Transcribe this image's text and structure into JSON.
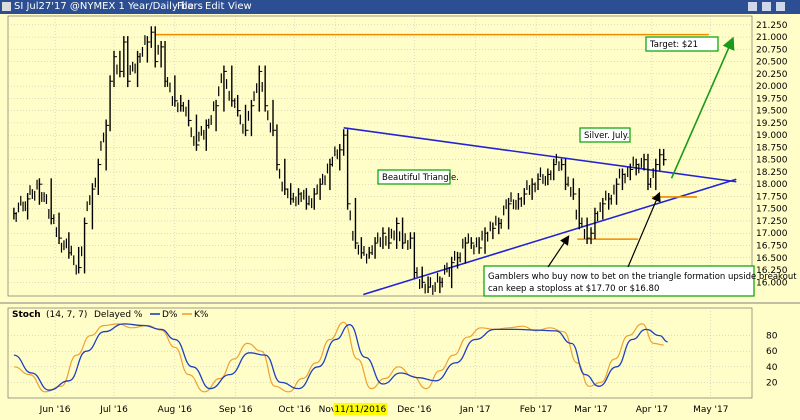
{
  "toolbar": {
    "title": "SI Jul27'17 @NYMEX  1 Year/Daily bars",
    "menu": [
      "File",
      "Edit",
      "View"
    ]
  },
  "stoch_header": {
    "name": "Stoch",
    "params": "(14, 7, 7)",
    "legend_d": "Delayed %",
    "legend_d2": "D%",
    "legend_k": "K%"
  },
  "annotations": {
    "target": "Target: $21",
    "silver": "Silver. July.",
    "triangle": "Beautiful Triangle.",
    "gamblers_line1": "Gamblers who buy now to bet on the triangle formation upside breakout",
    "gamblers_line2": "can keep a stoploss at $17.70 or $16.80"
  },
  "highlight_date": "11/11/2016",
  "colors": {
    "background": "#fffec8",
    "toolbar": "#2b4f92",
    "bars": "#000000",
    "triangle_lines": "#2323d6",
    "orange_lines": "#f08a00",
    "green_arrow": "#1a9a1a",
    "label_border": "#00a000",
    "stoch_k": "#f0a030",
    "stoch_d": "#1f3fbf",
    "date_highlight": "#ffff00"
  },
  "chart_data": [
    {
      "type": "line",
      "title": "SI Jul27'17 @NYMEX  1 Year/Daily bars",
      "series": [
        {
          "values": [
            [
              "2016-05-25",
              17.4
            ],
            [
              "2016-06-01",
              17.7
            ],
            [
              "2016-06-07",
              18.0
            ],
            [
              "2016-06-13",
              17.3
            ],
            [
              "2016-06-17",
              16.9
            ],
            [
              "2016-06-22",
              16.6
            ],
            [
              "2016-06-27",
              16.3
            ],
            [
              "2016-06-30",
              17.2
            ],
            [
              "2016-07-04",
              17.9
            ],
            [
              "2016-07-07",
              18.4
            ],
            [
              "2016-07-11",
              19.2
            ],
            [
              "2016-07-13",
              20.1
            ],
            [
              "2016-07-15",
              20.6
            ],
            [
              "2016-07-18",
              20.3
            ],
            [
              "2016-07-20",
              20.9
            ],
            [
              "2016-07-22",
              20.1
            ],
            [
              "2016-07-27",
              20.6
            ],
            [
              "2016-08-01",
              20.9
            ],
            [
              "2016-08-03",
              21.1
            ],
            [
              "2016-08-05",
              20.5
            ],
            [
              "2016-08-08",
              20.8
            ],
            [
              "2016-08-10",
              20.1
            ],
            [
              "2016-08-15",
              19.7
            ],
            [
              "2016-08-18",
              19.6
            ],
            [
              "2016-08-22",
              19.3
            ],
            [
              "2016-08-26",
              18.8
            ],
            [
              "2016-08-31",
              19.2
            ],
            [
              "2016-09-05",
              19.6
            ],
            [
              "2016-09-09",
              20.3
            ],
            [
              "2016-09-13",
              19.7
            ],
            [
              "2016-09-16",
              19.5
            ],
            [
              "2016-09-20",
              19.1
            ],
            [
              "2016-09-23",
              19.6
            ],
            [
              "2016-09-27",
              20.3
            ],
            [
              "2016-09-30",
              19.6
            ],
            [
              "2016-10-04",
              19.1
            ],
            [
              "2016-10-06",
              18.4
            ],
            [
              "2016-10-10",
              17.9
            ],
            [
              "2016-10-13",
              17.7
            ],
            [
              "2016-10-17",
              17.8
            ],
            [
              "2016-10-21",
              17.6
            ],
            [
              "2016-10-25",
              17.8
            ],
            [
              "2016-10-28",
              18.0
            ],
            [
              "2016-11-02",
              18.4
            ],
            [
              "2016-11-07",
              18.7
            ],
            [
              "2016-11-09",
              19.0
            ],
            [
              "2016-11-11",
              17.6
            ],
            [
              "2016-11-15",
              16.8
            ],
            [
              "2016-11-18",
              16.6
            ],
            [
              "2016-11-22",
              16.6
            ],
            [
              "2016-11-25",
              16.8
            ],
            [
              "2016-11-29",
              17.0
            ],
            [
              "2016-12-02",
              16.8
            ],
            [
              "2016-12-06",
              17.2
            ],
            [
              "2016-12-09",
              16.8
            ],
            [
              "2016-12-13",
              16.9
            ],
            [
              "2016-12-15",
              16.2
            ],
            [
              "2016-12-19",
              16.0
            ],
            [
              "2016-12-22",
              15.9
            ],
            [
              "2016-12-28",
              16.0
            ],
            [
              "2017-01-03",
              16.4
            ],
            [
              "2017-01-06",
              16.5
            ],
            [
              "2017-01-10",
              16.8
            ],
            [
              "2017-01-13",
              16.8
            ],
            [
              "2017-01-17",
              16.7
            ],
            [
              "2017-01-20",
              17.0
            ],
            [
              "2017-01-24",
              17.1
            ],
            [
              "2017-01-27",
              17.2
            ],
            [
              "2017-02-01",
              17.6
            ],
            [
              "2017-02-06",
              17.7
            ],
            [
              "2017-02-09",
              17.8
            ],
            [
              "2017-02-13",
              18.0
            ],
            [
              "2017-02-16",
              18.1
            ],
            [
              "2017-02-21",
              18.2
            ],
            [
              "2017-02-24",
              18.4
            ],
            [
              "2017-02-28",
              18.4
            ],
            [
              "2017-03-02",
              18.0
            ],
            [
              "2017-03-06",
              17.8
            ],
            [
              "2017-03-09",
              17.2
            ],
            [
              "2017-03-13",
              16.9
            ],
            [
              "2017-03-15",
              17.0
            ],
            [
              "2017-03-17",
              17.4
            ],
            [
              "2017-03-21",
              17.6
            ],
            [
              "2017-03-24",
              17.7
            ],
            [
              "2017-03-28",
              18.0
            ],
            [
              "2017-03-31",
              18.2
            ],
            [
              "2017-04-04",
              18.3
            ],
            [
              "2017-04-07",
              18.4
            ],
            [
              "2017-04-11",
              18.5
            ],
            [
              "2017-04-13",
              18.0
            ],
            [
              "2017-04-17",
              18.4
            ],
            [
              "2017-04-19",
              18.6
            ],
            [
              "2017-04-21",
              18.5
            ]
          ]
        }
      ],
      "x_range": [
        "2016-05-22",
        "2017-06-05"
      ],
      "y_range": [
        15.72,
        21.43
      ],
      "y_ticks": [
        16.0,
        16.25,
        16.5,
        16.75,
        17.0,
        17.25,
        17.5,
        17.75,
        18.0,
        18.25,
        18.5,
        18.75,
        19.0,
        19.25,
        19.5,
        19.75,
        20.0,
        20.25,
        20.5,
        20.75,
        21.0,
        21.25
      ],
      "y_tick_labels": [
        "16.000",
        "16.250",
        "16.500",
        "16.750",
        "17.000",
        "17.250",
        "17.500",
        "17.750",
        "18.000",
        "18.250",
        "18.500",
        "18.750",
        "19.000",
        "19.250",
        "19.500",
        "19.750",
        "20.000",
        "20.250",
        "20.500",
        "20.750",
        "21.000",
        "21.250"
      ],
      "x_ticks": [
        {
          "date": "2016-06-15",
          "label": "Jun '16"
        },
        {
          "date": "2016-07-15",
          "label": "Jul '16"
        },
        {
          "date": "2016-08-15",
          "label": "Aug '16"
        },
        {
          "date": "2016-09-15",
          "label": "Sep '16"
        },
        {
          "date": "2016-10-15",
          "label": "Oct '16"
        },
        {
          "date": "2016-11-05",
          "label": "Nov '16"
        },
        {
          "date": "2016-12-15",
          "label": "Dec '16"
        },
        {
          "date": "2017-01-15",
          "label": "Jan '17"
        },
        {
          "date": "2017-02-15",
          "label": "Feb '17"
        },
        {
          "date": "2017-03-15",
          "label": "Mar '17"
        },
        {
          "date": "2017-04-15",
          "label": "Apr '17"
        },
        {
          "date": "2017-05-15",
          "label": "May '17"
        }
      ],
      "grid": true,
      "trendlines": [
        {
          "kind": "triangle-upper",
          "from": [
            "2016-11-09",
            19.15
          ],
          "to": [
            "2017-05-28",
            18.05
          ]
        },
        {
          "kind": "triangle-lower",
          "from": [
            "2016-11-19",
            15.75
          ],
          "to": [
            "2017-05-28",
            18.1
          ]
        },
        {
          "kind": "target",
          "from": [
            "2016-08-05",
            21.05
          ],
          "to": [
            "2017-05-14",
            21.05
          ]
        },
        {
          "kind": "stop-17.70",
          "from": [
            "2017-04-15",
            17.74
          ],
          "to": [
            "2017-05-08",
            17.74
          ]
        },
        {
          "kind": "stop-16.80",
          "from": [
            "2017-03-08",
            16.88
          ],
          "to": [
            "2017-04-08",
            16.88
          ]
        },
        {
          "kind": "projection-arrow",
          "from": [
            "2017-04-25",
            18.12
          ],
          "to": [
            "2017-05-26",
            20.95
          ]
        }
      ]
    },
    {
      "type": "line",
      "title": "Stoch (14, 7, 7)",
      "y_range": [
        0,
        100
      ],
      "y_ticks": [
        20,
        40,
        60,
        80
      ],
      "y_tick_labels": [
        "20",
        "40",
        "60",
        "80"
      ],
      "series": [
        {
          "name": "K%",
          "values": [
            [
              "2016-05-25",
              40
            ],
            [
              "2016-06-02",
              30
            ],
            [
              "2016-06-10",
              8
            ],
            [
              "2016-06-18",
              15
            ],
            [
              "2016-06-26",
              55
            ],
            [
              "2016-07-03",
              80
            ],
            [
              "2016-07-10",
              93
            ],
            [
              "2016-07-17",
              95
            ],
            [
              "2016-07-24",
              90
            ],
            [
              "2016-08-01",
              93
            ],
            [
              "2016-08-08",
              87
            ],
            [
              "2016-08-15",
              65
            ],
            [
              "2016-08-22",
              30
            ],
            [
              "2016-08-30",
              8
            ],
            [
              "2016-09-07",
              25
            ],
            [
              "2016-09-14",
              50
            ],
            [
              "2016-09-21",
              70
            ],
            [
              "2016-09-28",
              60
            ],
            [
              "2016-10-05",
              15
            ],
            [
              "2016-10-12",
              8
            ],
            [
              "2016-10-19",
              25
            ],
            [
              "2016-10-26",
              45
            ],
            [
              "2016-11-02",
              75
            ],
            [
              "2016-11-09",
              97
            ],
            [
              "2016-11-16",
              50
            ],
            [
              "2016-11-23",
              12
            ],
            [
              "2016-11-30",
              25
            ],
            [
              "2016-12-07",
              40
            ],
            [
              "2016-12-14",
              28
            ],
            [
              "2016-12-21",
              12
            ],
            [
              "2016-12-28",
              35
            ],
            [
              "2017-01-04",
              55
            ],
            [
              "2017-01-11",
              78
            ],
            [
              "2017-01-18",
              90
            ],
            [
              "2017-01-25",
              88
            ],
            [
              "2017-02-01",
              90
            ],
            [
              "2017-02-08",
              92
            ],
            [
              "2017-02-15",
              86
            ],
            [
              "2017-02-22",
              90
            ],
            [
              "2017-03-01",
              85
            ],
            [
              "2017-03-08",
              45
            ],
            [
              "2017-03-14",
              15
            ],
            [
              "2017-03-20",
              20
            ],
            [
              "2017-03-27",
              50
            ],
            [
              "2017-04-03",
              80
            ],
            [
              "2017-04-10",
              95
            ],
            [
              "2017-04-16",
              70
            ],
            [
              "2017-04-21",
              68
            ]
          ]
        },
        {
          "name": "D%",
          "values": [
            [
              "2016-05-25",
              55
            ],
            [
              "2016-06-03",
              32
            ],
            [
              "2016-06-12",
              10
            ],
            [
              "2016-06-22",
              22
            ],
            [
              "2016-07-01",
              60
            ],
            [
              "2016-07-10",
              85
            ],
            [
              "2016-07-20",
              95
            ],
            [
              "2016-07-30",
              93
            ],
            [
              "2016-08-08",
              88
            ],
            [
              "2016-08-15",
              75
            ],
            [
              "2016-08-24",
              40
            ],
            [
              "2016-09-02",
              12
            ],
            [
              "2016-09-12",
              30
            ],
            [
              "2016-09-22",
              58
            ],
            [
              "2016-09-30",
              55
            ],
            [
              "2016-10-08",
              20
            ],
            [
              "2016-10-17",
              12
            ],
            [
              "2016-10-27",
              40
            ],
            [
              "2016-11-05",
              75
            ],
            [
              "2016-11-12",
              94
            ],
            [
              "2016-11-20",
              52
            ],
            [
              "2016-11-29",
              18
            ],
            [
              "2016-12-08",
              32
            ],
            [
              "2016-12-17",
              26
            ],
            [
              "2016-12-26",
              22
            ],
            [
              "2017-01-05",
              45
            ],
            [
              "2017-01-15",
              75
            ],
            [
              "2017-01-25",
              88
            ],
            [
              "2017-02-05",
              88
            ],
            [
              "2017-02-15",
              87
            ],
            [
              "2017-02-25",
              86
            ],
            [
              "2017-03-05",
              70
            ],
            [
              "2017-03-12",
              30
            ],
            [
              "2017-03-19",
              15
            ],
            [
              "2017-03-28",
              40
            ],
            [
              "2017-04-05",
              75
            ],
            [
              "2017-04-12",
              88
            ],
            [
              "2017-04-19",
              80
            ],
            [
              "2017-04-23",
              72
            ]
          ]
        }
      ]
    }
  ]
}
